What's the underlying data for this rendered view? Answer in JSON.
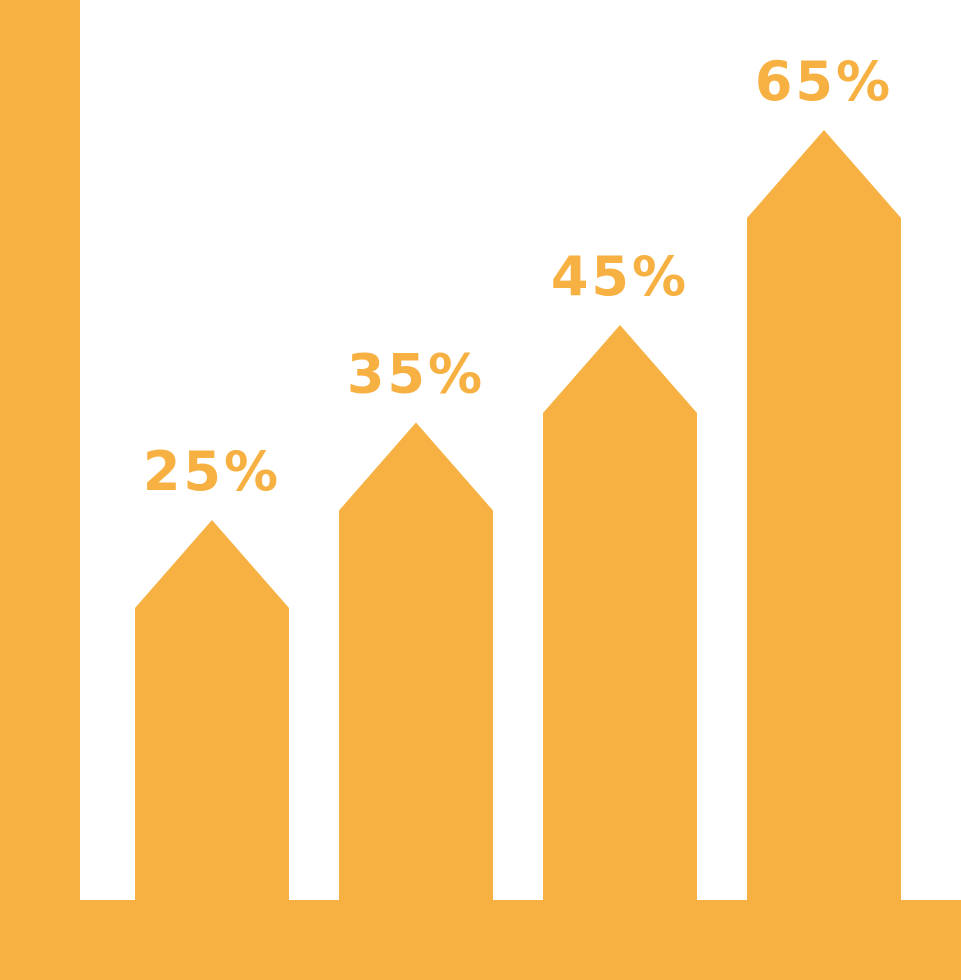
{
  "colors": {
    "accent": "#F7B143",
    "background": "#FFFFFF"
  },
  "chart_data": {
    "type": "bar",
    "bar_shape": "arrow",
    "title": "",
    "xlabel": "",
    "ylabel": "",
    "values": [
      25,
      35,
      45,
      65
    ],
    "data_labels": [
      "25%",
      "35%",
      "45%",
      "65%"
    ],
    "ylim": [
      0,
      65
    ],
    "grid": false
  }
}
